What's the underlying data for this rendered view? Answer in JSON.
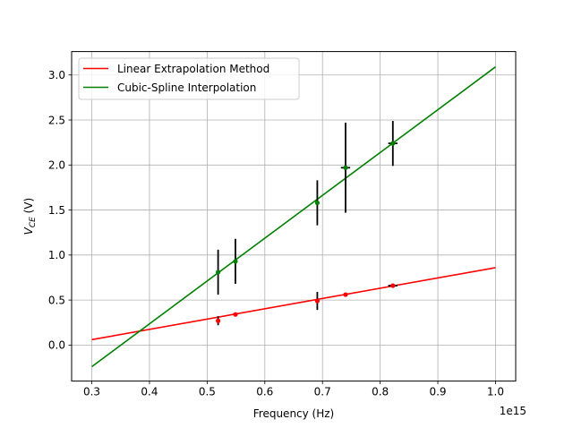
{
  "chart_data": {
    "type": "line",
    "title": "",
    "xlabel": "Frequency (Hz)",
    "ylabel_main": "V",
    "ylabel_sub": "CE",
    "ylabel_unit": " (V)",
    "x_offset_label": "1e15",
    "xlim": [
      0.265,
      1.035
    ],
    "ylim": [
      -0.4,
      3.26
    ],
    "xticks": [
      0.3,
      0.4,
      0.5,
      0.6,
      0.7,
      0.8,
      0.9,
      1.0
    ],
    "xtick_labels": [
      "0.3",
      "0.4",
      "0.5",
      "0.6",
      "0.7",
      "0.8",
      "0.9",
      "1.0"
    ],
    "yticks": [
      0.0,
      0.5,
      1.0,
      1.5,
      2.0,
      2.5,
      3.0
    ],
    "ytick_labels": [
      "0.0",
      "0.5",
      "1.0",
      "1.5",
      "2.0",
      "2.5",
      "3.0"
    ],
    "grid": true,
    "legend_position": "top-left",
    "series": [
      {
        "name": "Linear Extrapolation Method",
        "color": "#ff0000",
        "fit_line": {
          "x": [
            0.3,
            1.0
          ],
          "y": [
            0.06,
            0.86
          ]
        },
        "points": [
          {
            "x": 0.519,
            "y": 0.27,
            "yerr": 0.05,
            "xerr": 0.003
          },
          {
            "x": 0.549,
            "y": 0.34,
            "yerr": 0.01,
            "xerr": 0.003
          },
          {
            "x": 0.691,
            "y": 0.49,
            "yerr": 0.1,
            "xerr": 0.003
          },
          {
            "x": 0.74,
            "y": 0.56,
            "yerr": 0.01,
            "xerr": 0.003
          },
          {
            "x": 0.822,
            "y": 0.66,
            "yerr": 0.01,
            "xerr": 0.008
          }
        ]
      },
      {
        "name": "Cubic-Spline Interpolation",
        "color": "#008000",
        "fit_line": {
          "x": [
            0.3,
            1.0
          ],
          "y": [
            -0.24,
            3.09
          ]
        },
        "points": [
          {
            "x": 0.519,
            "y": 0.81,
            "yerr": 0.25,
            "xerr": 0.003
          },
          {
            "x": 0.549,
            "y": 0.93,
            "yerr": 0.25,
            "xerr": 0.003
          },
          {
            "x": 0.691,
            "y": 1.58,
            "yerr": 0.25,
            "xerr": 0.003
          },
          {
            "x": 0.74,
            "y": 1.97,
            "yerr": 0.5,
            "xerr": 0.008
          },
          {
            "x": 0.822,
            "y": 2.24,
            "yerr": 0.25,
            "xerr": 0.008
          }
        ]
      }
    ]
  }
}
